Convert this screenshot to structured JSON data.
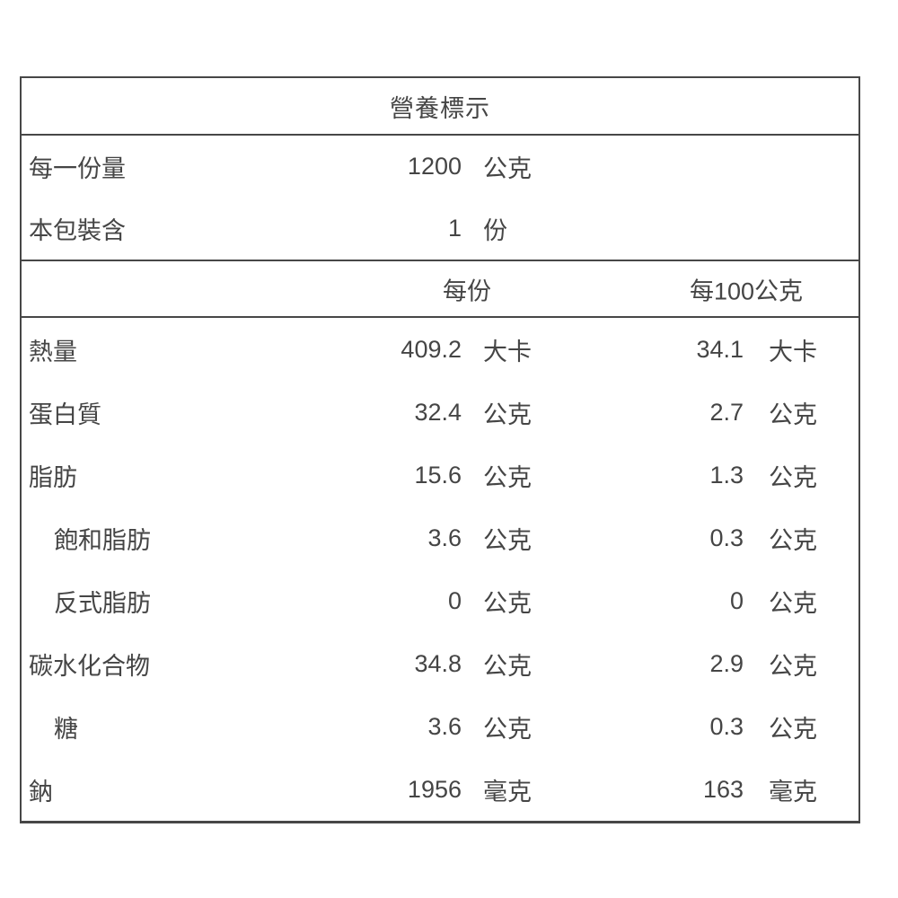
{
  "nutrition_label": {
    "title": "營養標示",
    "serving_info": [
      {
        "label": "每一份量",
        "value": "1200",
        "unit": "公克"
      },
      {
        "label": "本包裝含",
        "value": "1",
        "unit": "份"
      }
    ],
    "column_headers": {
      "per_serving": "每份",
      "per_100g": "每100公克"
    },
    "rows": [
      {
        "label": "熱量",
        "indent": false,
        "per_serving": "409.2",
        "per_serving_unit": "大卡",
        "per_100g": "34.1",
        "per_100g_unit": "大卡"
      },
      {
        "label": "蛋白質",
        "indent": false,
        "per_serving": "32.4",
        "per_serving_unit": "公克",
        "per_100g": "2.7",
        "per_100g_unit": "公克"
      },
      {
        "label": "脂肪",
        "indent": false,
        "per_serving": "15.6",
        "per_serving_unit": "公克",
        "per_100g": "1.3",
        "per_100g_unit": "公克"
      },
      {
        "label": "飽和脂肪",
        "indent": true,
        "per_serving": "3.6",
        "per_serving_unit": "公克",
        "per_100g": "0.3",
        "per_100g_unit": "公克"
      },
      {
        "label": "反式脂肪",
        "indent": true,
        "per_serving": "0",
        "per_serving_unit": "公克",
        "per_100g": "0",
        "per_100g_unit": "公克"
      },
      {
        "label": "碳水化合物",
        "indent": false,
        "per_serving": "34.8",
        "per_serving_unit": "公克",
        "per_100g": "2.9",
        "per_100g_unit": "公克"
      },
      {
        "label": "糖",
        "indent": true,
        "per_serving": "3.6",
        "per_serving_unit": "公克",
        "per_100g": "0.3",
        "per_100g_unit": "公克"
      },
      {
        "label": "鈉",
        "indent": false,
        "per_serving": "1956",
        "per_serving_unit": "毫克",
        "per_100g": "163",
        "per_100g_unit": "毫克"
      }
    ],
    "colors": {
      "text": "#454545",
      "border": "#474747",
      "background": "#ffffff"
    }
  }
}
